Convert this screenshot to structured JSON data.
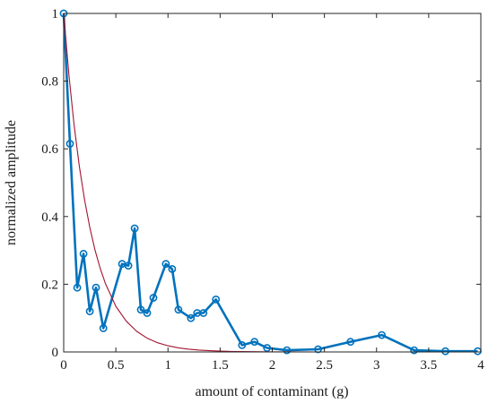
{
  "chart_data": {
    "type": "line",
    "xlabel": "amount of contaminant (g)",
    "ylabel": "normalized amplitude",
    "xlim": [
      0,
      4
    ],
    "ylim": [
      0,
      1
    ],
    "x_ticks": [
      0,
      0.5,
      1,
      1.5,
      2,
      2.5,
      3,
      3.5,
      4
    ],
    "x_tick_labels": [
      "0",
      "0.5",
      "1",
      "1.5",
      "2",
      "2.5",
      "3",
      "3.5",
      "4"
    ],
    "y_ticks": [
      0,
      0.2,
      0.4,
      0.6,
      0.8,
      1
    ],
    "y_tick_labels": [
      "0",
      "0.2",
      "0.4",
      "0.6",
      "0.8",
      "1"
    ],
    "grid": false,
    "box": true,
    "series": [
      {
        "style": "line-with-circle-markers",
        "color": "#0072BD",
        "x": [
          0.0,
          0.06,
          0.13,
          0.19,
          0.25,
          0.31,
          0.38,
          0.56,
          0.62,
          0.68,
          0.74,
          0.8,
          0.86,
          0.98,
          1.04,
          1.1,
          1.22,
          1.28,
          1.34,
          1.46,
          1.71,
          1.83,
          1.95,
          2.14,
          2.44,
          2.75,
          3.05,
          3.36,
          3.66,
          3.97
        ],
        "y": [
          1.0,
          0.615,
          0.19,
          0.29,
          0.12,
          0.19,
          0.07,
          0.26,
          0.255,
          0.365,
          0.125,
          0.115,
          0.16,
          0.26,
          0.245,
          0.125,
          0.1,
          0.115,
          0.115,
          0.155,
          0.02,
          0.03,
          0.012,
          0.005,
          0.008,
          0.03,
          0.05,
          0.005,
          0.002,
          0.002
        ]
      },
      {
        "style": "line",
        "color": "#A2142F",
        "x": [
          0,
          0.05,
          0.1,
          0.15,
          0.2,
          0.25,
          0.3,
          0.35,
          0.4,
          0.5,
          0.6,
          0.7,
          0.8,
          0.9,
          1.0,
          1.1,
          1.2,
          1.3,
          1.4,
          1.5,
          1.6,
          1.7,
          1.8,
          1.9,
          2.0,
          2.2,
          2.4,
          2.6,
          2.8,
          3.0,
          3.2,
          3.4,
          3.6,
          3.8,
          4.0
        ],
        "y": [
          1.0,
          0.819,
          0.67,
          0.549,
          0.449,
          0.368,
          0.301,
          0.247,
          0.202,
          0.135,
          0.0907,
          0.0608,
          0.0408,
          0.0273,
          0.0183,
          0.0123,
          0.0082,
          0.0055,
          0.0037,
          0.0025,
          0.0017,
          0.0011,
          0.0007,
          0.0005,
          0.0003,
          0.0002,
          0.0001,
          0.0,
          0.0,
          0.0,
          0.0,
          0.0,
          0.0,
          0.0,
          0.0
        ]
      }
    ]
  }
}
